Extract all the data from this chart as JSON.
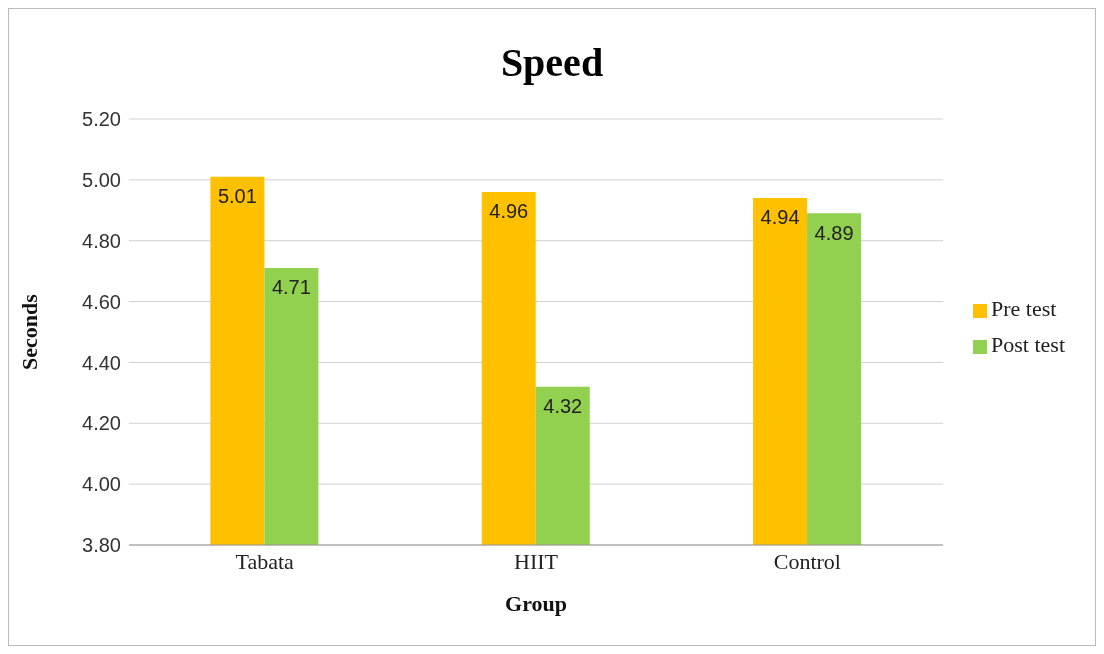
{
  "chart_data": {
    "type": "bar",
    "title": "Speed",
    "xlabel": "Group",
    "ylabel": "Seconds",
    "categories": [
      "Tabata",
      "HIIT",
      "Control"
    ],
    "series": [
      {
        "name": "Pre test",
        "color": "#ffc000",
        "values": [
          5.01,
          4.96,
          4.94
        ]
      },
      {
        "name": "Post test",
        "color": "#92d050",
        "values": [
          4.71,
          4.32,
          4.89
        ]
      }
    ],
    "ylim": [
      3.8,
      5.2
    ],
    "yticks": [
      {
        "value": 3.8,
        "label": "3.80"
      },
      {
        "value": 4.0,
        "label": "4.00"
      },
      {
        "value": 4.2,
        "label": "4.20"
      },
      {
        "value": 4.4,
        "label": "4.40"
      },
      {
        "value": 4.6,
        "label": "4.60"
      },
      {
        "value": 4.8,
        "label": "4.80"
      },
      {
        "value": 5.0,
        "label": "5.00"
      },
      {
        "value": 5.2,
        "label": "5.20"
      }
    ],
    "grid": "y",
    "legend": "right",
    "data_labels": true
  }
}
